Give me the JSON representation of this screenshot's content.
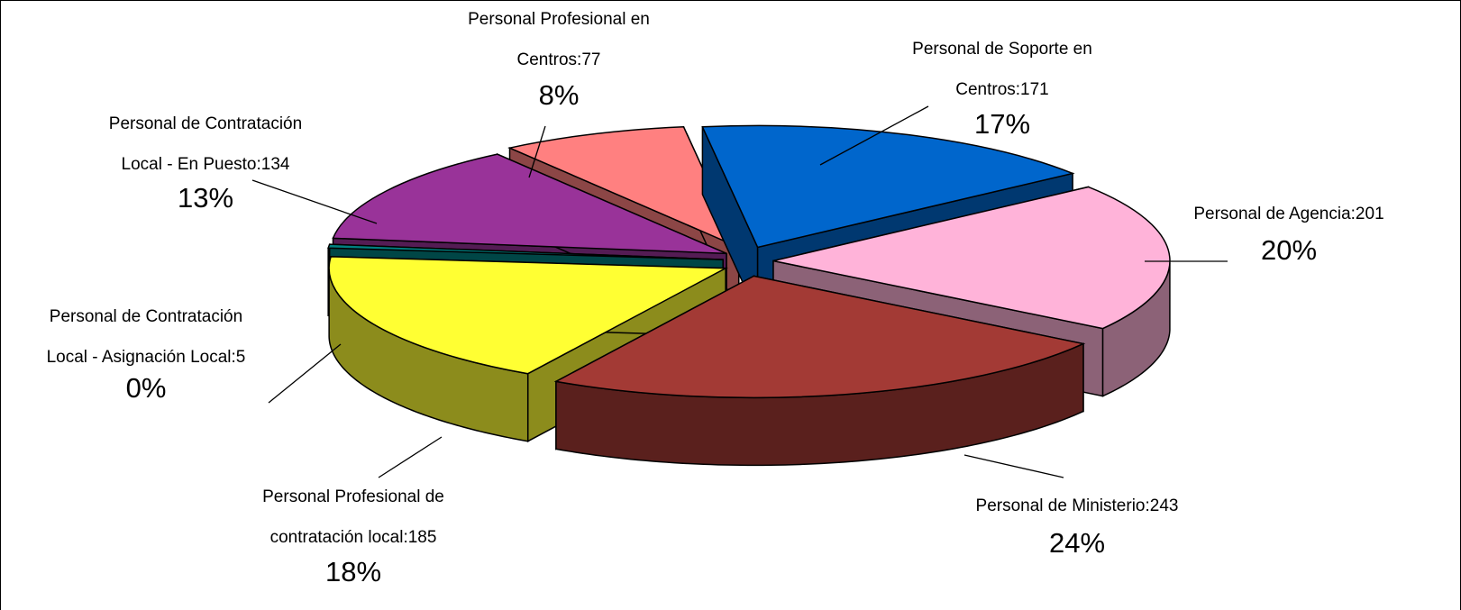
{
  "chart_data": {
    "type": "pie3d",
    "categories": [
      [
        "Personal de Soporte en",
        "Centros:171"
      ],
      [
        "Personal de Agencia:201"
      ],
      [
        "Personal de Ministerio:243"
      ],
      [
        "Personal Profesional de",
        "contratación local:185"
      ],
      [
        "Personal de Contratación",
        "Local - Asignación Local:5"
      ],
      [
        "Personal de Contratación",
        "Local - En Puesto:134"
      ],
      [
        "Personal Profesional en",
        "Centros:77"
      ]
    ],
    "values": [
      171,
      201,
      243,
      185,
      5,
      134,
      77
    ],
    "value_labels": [
      "17%",
      "20%",
      "24%",
      "18%",
      "0%",
      "13%",
      "8%"
    ],
    "colors": [
      "#0066cc",
      "#ffb3d9",
      "#a33a35",
      "#ffff33",
      "#008080",
      "#993399",
      "#ff8080"
    ]
  }
}
